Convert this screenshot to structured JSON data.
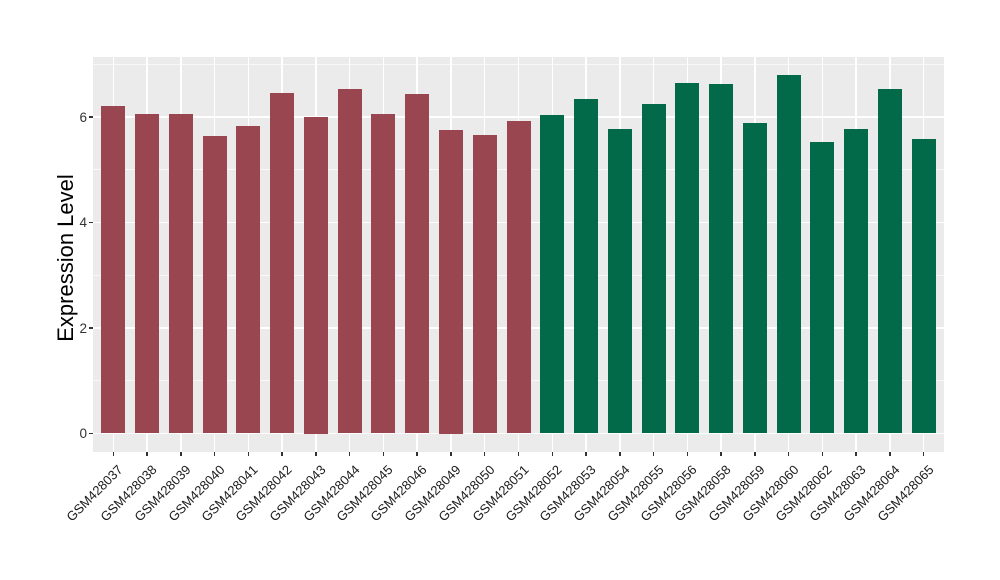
{
  "chart_data": {
    "type": "bar",
    "title": "",
    "xlabel": "",
    "ylabel": "Expression Level",
    "ylim": [
      0,
      7.13
    ],
    "yticks": [
      0,
      2,
      4,
      6
    ],
    "y_minor_ticks": [
      1,
      3,
      5,
      7
    ],
    "grid": true,
    "legend": false,
    "colors": {
      "panel_background": "#ebebeb",
      "gridline": "#ffffff",
      "axis_text": "#333333",
      "group_1_bar": "#9a4651",
      "group_2_bar": "#026a48"
    },
    "series": [
      {
        "color": "#9a4651",
        "categories": [
          "GSM428037",
          "GSM428038",
          "GSM428039",
          "GSM428040",
          "GSM428041",
          "GSM428042",
          "GSM428043",
          "GSM428044",
          "GSM428045",
          "GSM428046",
          "GSM428049",
          "GSM428050",
          "GSM428051"
        ],
        "values": [
          6.2,
          6.06,
          6.06,
          5.64,
          5.83,
          6.46,
          6.0,
          6.54,
          6.06,
          6.43,
          5.75,
          5.66,
          5.92
        ]
      },
      {
        "color": "#026a48",
        "categories": [
          "GSM428052",
          "GSM428053",
          "GSM428054",
          "GSM428055",
          "GSM428056",
          "GSM428058",
          "GSM428059",
          "GSM428060",
          "GSM428062",
          "GSM428063",
          "GSM428064",
          "GSM428065"
        ],
        "values": [
          6.04,
          6.35,
          5.78,
          6.24,
          6.64,
          6.63,
          5.88,
          6.8,
          5.53,
          5.77,
          6.54,
          5.59
        ]
      }
    ]
  }
}
